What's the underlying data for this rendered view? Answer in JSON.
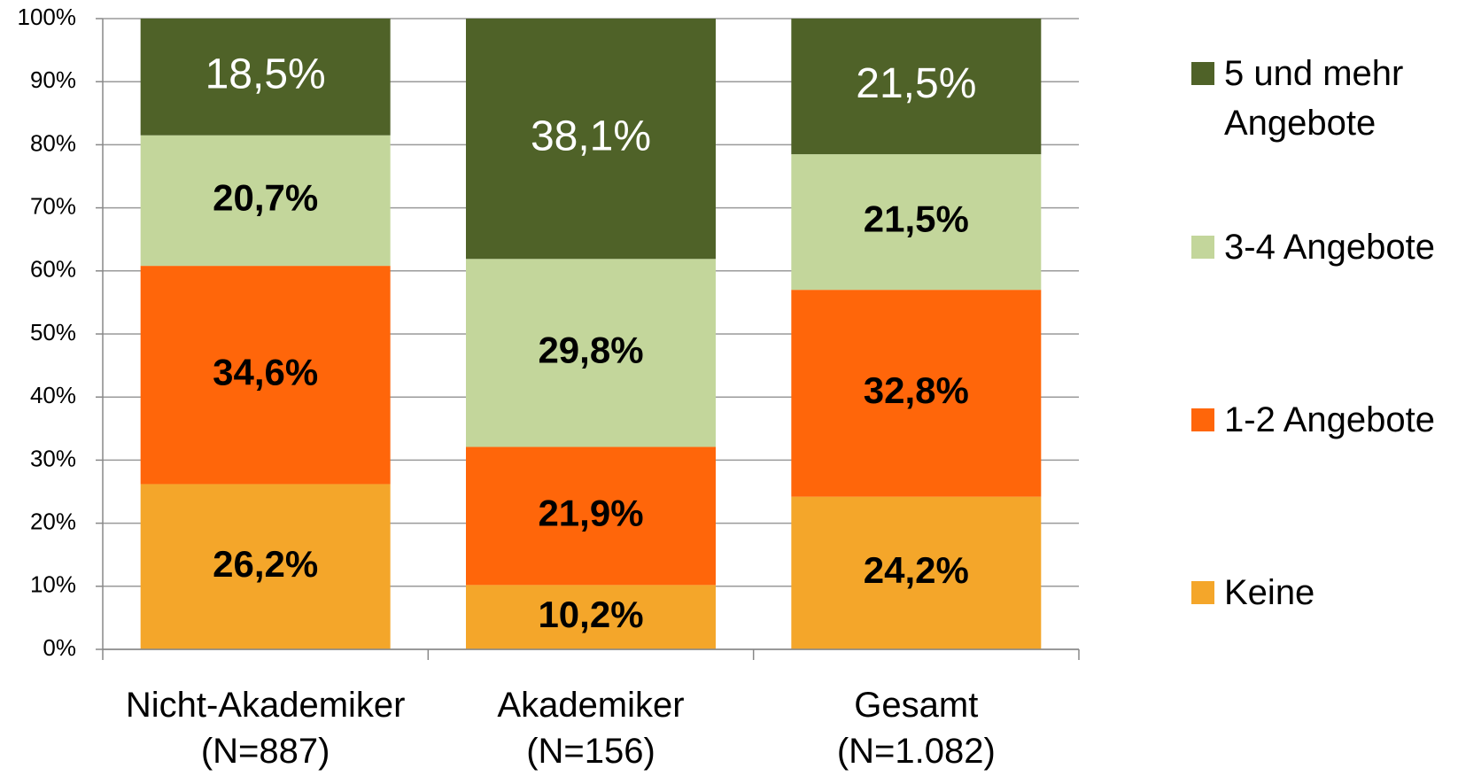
{
  "chart_data": {
    "type": "stacked_bar",
    "categories": [
      "Nicht-Akademiker\n(N=887)",
      "Akademiker\n(N=156)",
      "Gesamt\n(N=1.082)"
    ],
    "series": [
      {
        "name": "Keine",
        "color": "#f4a62a",
        "values": [
          26.2,
          10.2,
          24.2
        ],
        "value_labels": [
          "26,2%",
          "10,2%",
          "24,2%"
        ]
      },
      {
        "name": "1-2 Angebote",
        "color": "#ff660a",
        "values": [
          34.6,
          21.9,
          32.8
        ],
        "value_labels": [
          "34,6%",
          "21,9%",
          "32,8%"
        ]
      },
      {
        "name": "3-4 Angebote",
        "color": "#c3d69b",
        "values": [
          20.7,
          29.8,
          21.5
        ],
        "value_labels": [
          "20,7%",
          "29,8%",
          "21,5%"
        ]
      },
      {
        "name": "5 und mehr\nAngebote",
        "color": "#4f6228",
        "values": [
          18.5,
          38.1,
          21.5
        ],
        "value_labels": [
          "18,5%",
          "38,1%",
          "21,5%"
        ]
      }
    ],
    "ylim": [
      0,
      100
    ],
    "yticks": [
      {
        "value": 0,
        "label": "0%"
      },
      {
        "value": 10,
        "label": "10%"
      },
      {
        "value": 20,
        "label": "20%"
      },
      {
        "value": 30,
        "label": "30%"
      },
      {
        "value": 40,
        "label": "40%"
      },
      {
        "value": 50,
        "label": "50%"
      },
      {
        "value": 60,
        "label": "60%"
      },
      {
        "value": 70,
        "label": "70%"
      },
      {
        "value": 80,
        "label": "80%"
      },
      {
        "value": 90,
        "label": "90%"
      },
      {
        "value": 100,
        "label": "100%"
      }
    ],
    "grid": true,
    "legend": "right"
  }
}
